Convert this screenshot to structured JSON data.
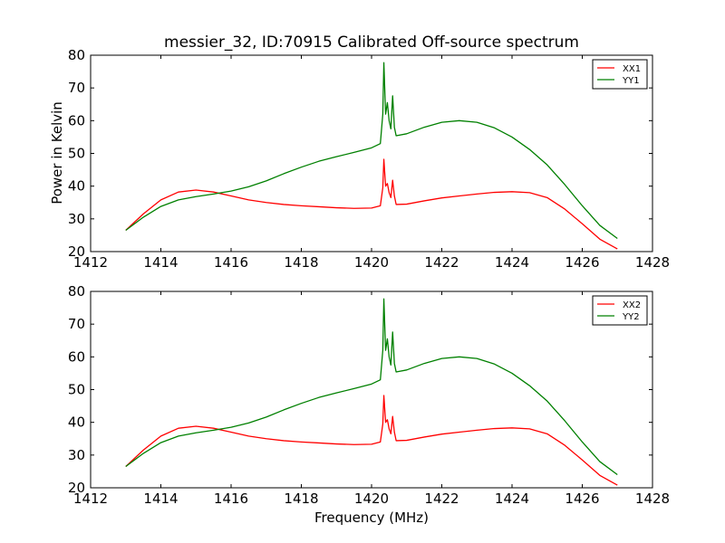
{
  "figure": {
    "title": "messier_32, ID:70915 Calibrated Off-source spectrum",
    "ylabel": "Power in Kelvin",
    "xlabel": "Frequency (MHz)"
  },
  "colors": {
    "red": "#ff0000",
    "green": "#008000"
  },
  "chart_data": [
    {
      "type": "line",
      "title": "messier_32, ID:70915 Calibrated Off-source spectrum",
      "ylabel": "Power in Kelvin",
      "xlabel": "",
      "xlim": [
        1412,
        1428
      ],
      "ylim": [
        20,
        80
      ],
      "xticks": [
        1412,
        1414,
        1416,
        1418,
        1420,
        1422,
        1424,
        1426,
        1428
      ],
      "yticks": [
        20,
        30,
        40,
        50,
        60,
        70,
        80
      ],
      "grid": false,
      "legend": "top-right",
      "series": [
        {
          "name": "XX1",
          "color": "#ff0000",
          "x": [
            1413.0,
            1413.5,
            1414.0,
            1414.5,
            1415.0,
            1415.5,
            1416.0,
            1416.5,
            1417.0,
            1417.5,
            1418.0,
            1418.5,
            1419.0,
            1419.5,
            1420.0,
            1420.25,
            1420.32,
            1420.35,
            1420.4,
            1420.45,
            1420.5,
            1420.55,
            1420.6,
            1420.65,
            1420.7,
            1421.0,
            1421.5,
            1422.0,
            1422.5,
            1423.0,
            1423.5,
            1424.0,
            1424.5,
            1425.0,
            1425.5,
            1426.0,
            1426.5,
            1427.0
          ],
          "y": [
            26.5,
            31.5,
            35.8,
            38.2,
            38.8,
            38.2,
            37.0,
            35.8,
            35.0,
            34.4,
            34.0,
            33.7,
            33.4,
            33.2,
            33.3,
            34.0,
            39.5,
            48.2,
            40.0,
            40.8,
            38.0,
            36.5,
            41.8,
            37.0,
            34.4,
            34.5,
            35.5,
            36.4,
            37.0,
            37.6,
            38.1,
            38.3,
            38.0,
            36.5,
            33.0,
            28.5,
            23.8,
            20.8
          ]
        },
        {
          "name": "YY1",
          "color": "#008000",
          "x": [
            1413.0,
            1413.5,
            1414.0,
            1414.5,
            1415.0,
            1415.5,
            1416.0,
            1416.5,
            1417.0,
            1417.5,
            1418.0,
            1418.5,
            1419.0,
            1419.5,
            1420.0,
            1420.25,
            1420.32,
            1420.35,
            1420.4,
            1420.45,
            1420.5,
            1420.55,
            1420.6,
            1420.65,
            1420.7,
            1421.0,
            1421.5,
            1422.0,
            1422.5,
            1423.0,
            1423.5,
            1424.0,
            1424.5,
            1425.0,
            1425.5,
            1426.0,
            1426.5,
            1427.0
          ],
          "y": [
            26.5,
            30.5,
            33.8,
            35.8,
            36.8,
            37.6,
            38.5,
            39.8,
            41.6,
            43.8,
            45.8,
            47.6,
            49.0,
            50.3,
            51.7,
            53.0,
            62.0,
            77.7,
            62.0,
            65.5,
            60.0,
            57.5,
            67.6,
            58.0,
            55.4,
            56.0,
            58.0,
            59.5,
            60.0,
            59.5,
            57.8,
            55.0,
            51.2,
            46.5,
            40.5,
            34.0,
            28.0,
            24.0
          ]
        }
      ]
    },
    {
      "type": "line",
      "title": "",
      "ylabel": "",
      "xlabel": "Frequency (MHz)",
      "xlim": [
        1412,
        1428
      ],
      "ylim": [
        20,
        80
      ],
      "xticks": [
        1412,
        1414,
        1416,
        1418,
        1420,
        1422,
        1424,
        1426,
        1428
      ],
      "yticks": [
        20,
        30,
        40,
        50,
        60,
        70,
        80
      ],
      "grid": false,
      "legend": "top-right",
      "series": [
        {
          "name": "XX2",
          "color": "#ff0000",
          "x": [
            1413.0,
            1413.5,
            1414.0,
            1414.5,
            1415.0,
            1415.5,
            1416.0,
            1416.5,
            1417.0,
            1417.5,
            1418.0,
            1418.5,
            1419.0,
            1419.5,
            1420.0,
            1420.25,
            1420.32,
            1420.35,
            1420.4,
            1420.45,
            1420.5,
            1420.55,
            1420.6,
            1420.65,
            1420.7,
            1421.0,
            1421.5,
            1422.0,
            1422.5,
            1423.0,
            1423.5,
            1424.0,
            1424.5,
            1425.0,
            1425.5,
            1426.0,
            1426.5,
            1427.0
          ],
          "y": [
            26.5,
            31.5,
            35.8,
            38.2,
            38.8,
            38.2,
            37.0,
            35.8,
            35.0,
            34.4,
            34.0,
            33.7,
            33.4,
            33.2,
            33.3,
            34.0,
            39.5,
            48.2,
            40.0,
            40.8,
            38.0,
            36.5,
            41.8,
            37.0,
            34.4,
            34.5,
            35.5,
            36.4,
            37.0,
            37.6,
            38.1,
            38.3,
            38.0,
            36.5,
            33.0,
            28.5,
            23.8,
            20.8
          ]
        },
        {
          "name": "YY2",
          "color": "#008000",
          "x": [
            1413.0,
            1413.5,
            1414.0,
            1414.5,
            1415.0,
            1415.5,
            1416.0,
            1416.5,
            1417.0,
            1417.5,
            1418.0,
            1418.5,
            1419.0,
            1419.5,
            1420.0,
            1420.25,
            1420.32,
            1420.35,
            1420.4,
            1420.45,
            1420.5,
            1420.55,
            1420.6,
            1420.65,
            1420.7,
            1421.0,
            1421.5,
            1422.0,
            1422.5,
            1423.0,
            1423.5,
            1424.0,
            1424.5,
            1425.0,
            1425.5,
            1426.0,
            1426.5,
            1427.0
          ],
          "y": [
            26.5,
            30.5,
            33.8,
            35.8,
            36.8,
            37.6,
            38.5,
            39.8,
            41.6,
            43.8,
            45.8,
            47.6,
            49.0,
            50.3,
            51.7,
            53.0,
            62.0,
            77.7,
            62.0,
            65.5,
            60.0,
            57.5,
            67.6,
            58.0,
            55.4,
            56.0,
            58.0,
            59.5,
            60.0,
            59.5,
            57.8,
            55.0,
            51.2,
            46.5,
            40.5,
            34.0,
            28.0,
            24.0
          ]
        }
      ]
    }
  ]
}
